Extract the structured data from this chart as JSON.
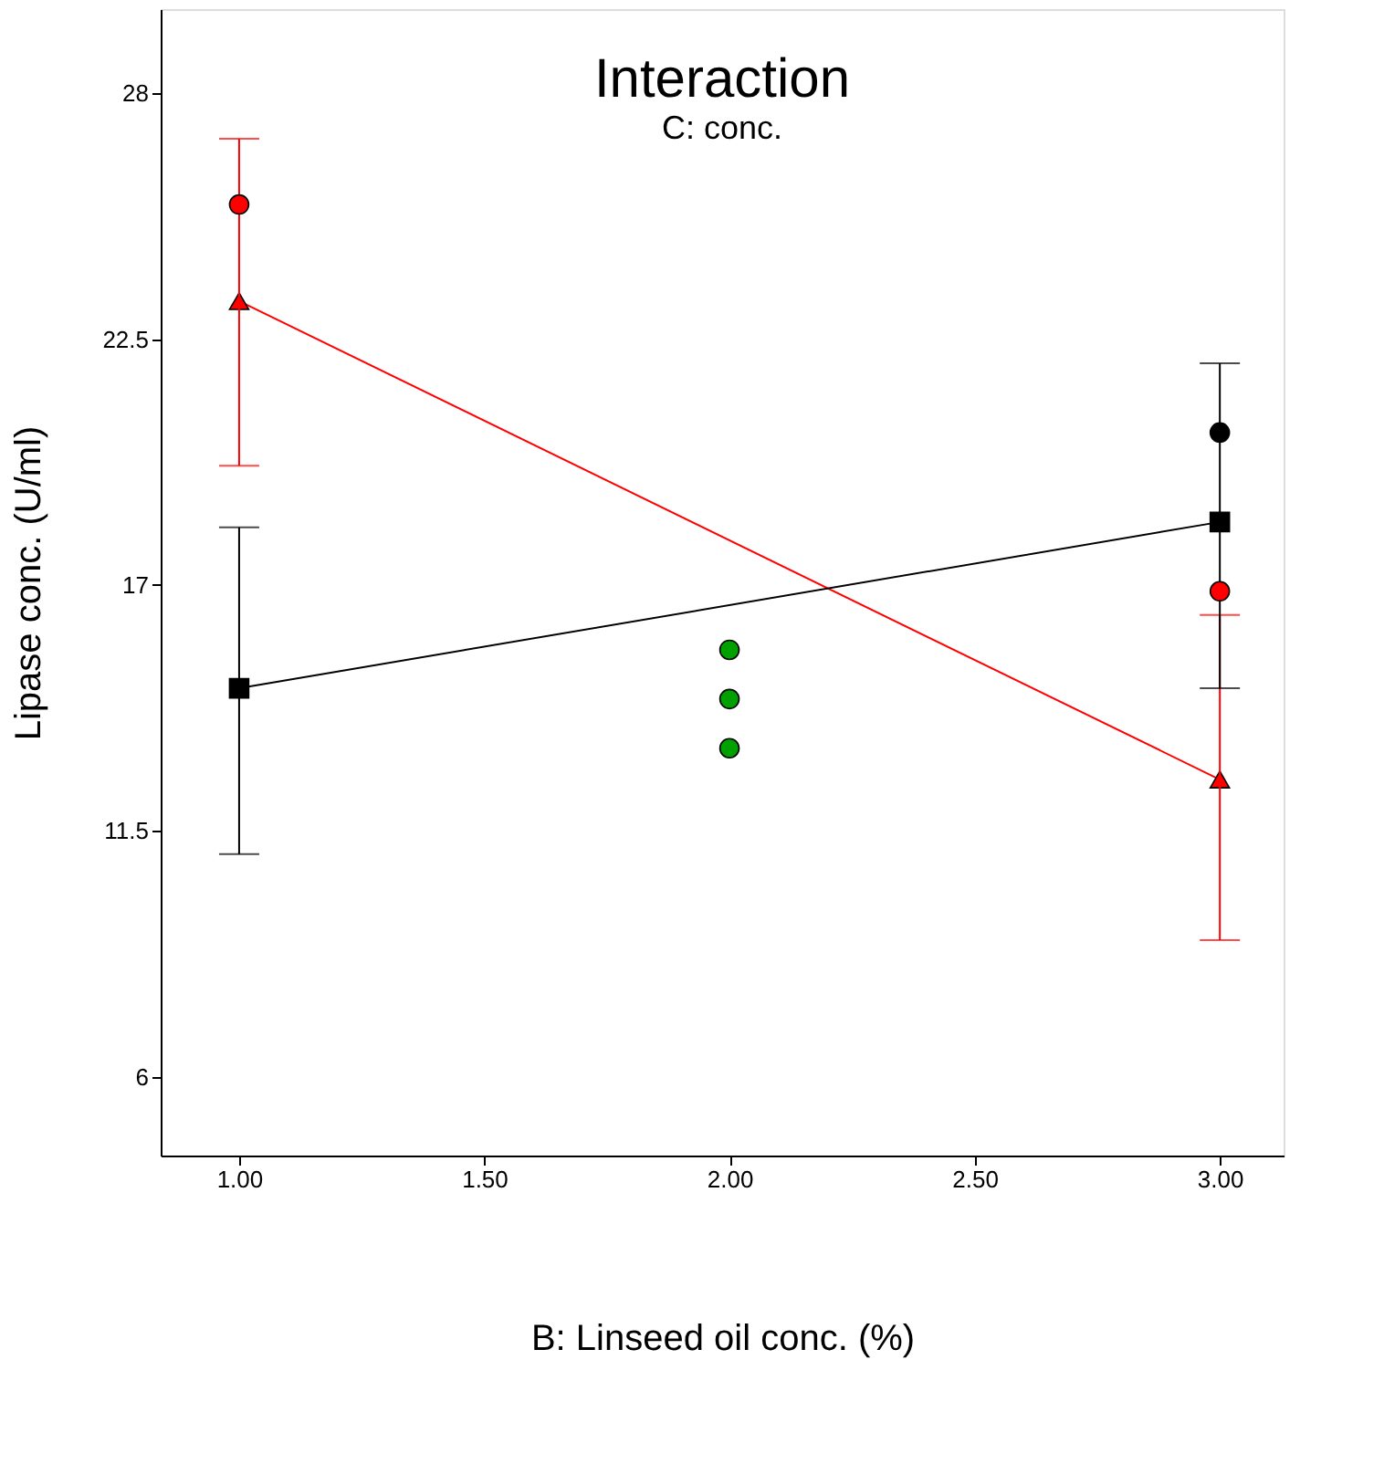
{
  "chart_data": {
    "type": "line",
    "title": "Interaction",
    "subtitle": "C: conc.",
    "xlabel": "B: Linseed oil conc. (%)",
    "ylabel": "Lipase conc. (U/ml)",
    "xlim": [
      0.84,
      3.13
    ],
    "ylim": [
      4.24,
      29.88
    ],
    "xticks": [
      {
        "value": 1,
        "label": "1.00"
      },
      {
        "value": 1.5,
        "label": "1.50"
      },
      {
        "value": 2,
        "label": "2.00"
      },
      {
        "value": 2.5,
        "label": "2.50"
      },
      {
        "value": 3,
        "label": "3.00"
      }
    ],
    "yticks": [
      6,
      11.5,
      17,
      22.5,
      28
    ],
    "grid": false,
    "series": [
      {
        "type": "line",
        "marker": "triangle",
        "color": "#ff0000",
        "x": [
          1,
          3
        ],
        "values": [
          23.35,
          12.65
        ],
        "errors": [
          [
            19.67,
            26.98
          ],
          [
            9.06,
            16.33
          ]
        ]
      },
      {
        "type": "line",
        "marker": "square",
        "color": "#000000",
        "x": [
          1,
          3
        ],
        "values": [
          14.69,
          18.41
        ],
        "errors": [
          [
            10.98,
            18.29
          ],
          [
            14.69,
            21.96
          ]
        ]
      },
      {
        "type": "scatter",
        "marker": "circle",
        "color": "#ff0000",
        "x": [
          1,
          3
        ],
        "values": [
          25.51,
          16.86
        ]
      },
      {
        "type": "scatter",
        "marker": "circle",
        "color": "#000000",
        "x": [
          3
        ],
        "values": [
          20.41
        ]
      },
      {
        "type": "scatter",
        "marker": "circle",
        "color": "#00a000",
        "x": [
          2,
          2,
          2
        ],
        "values": [
          15.55,
          14.45,
          13.35
        ]
      }
    ]
  }
}
